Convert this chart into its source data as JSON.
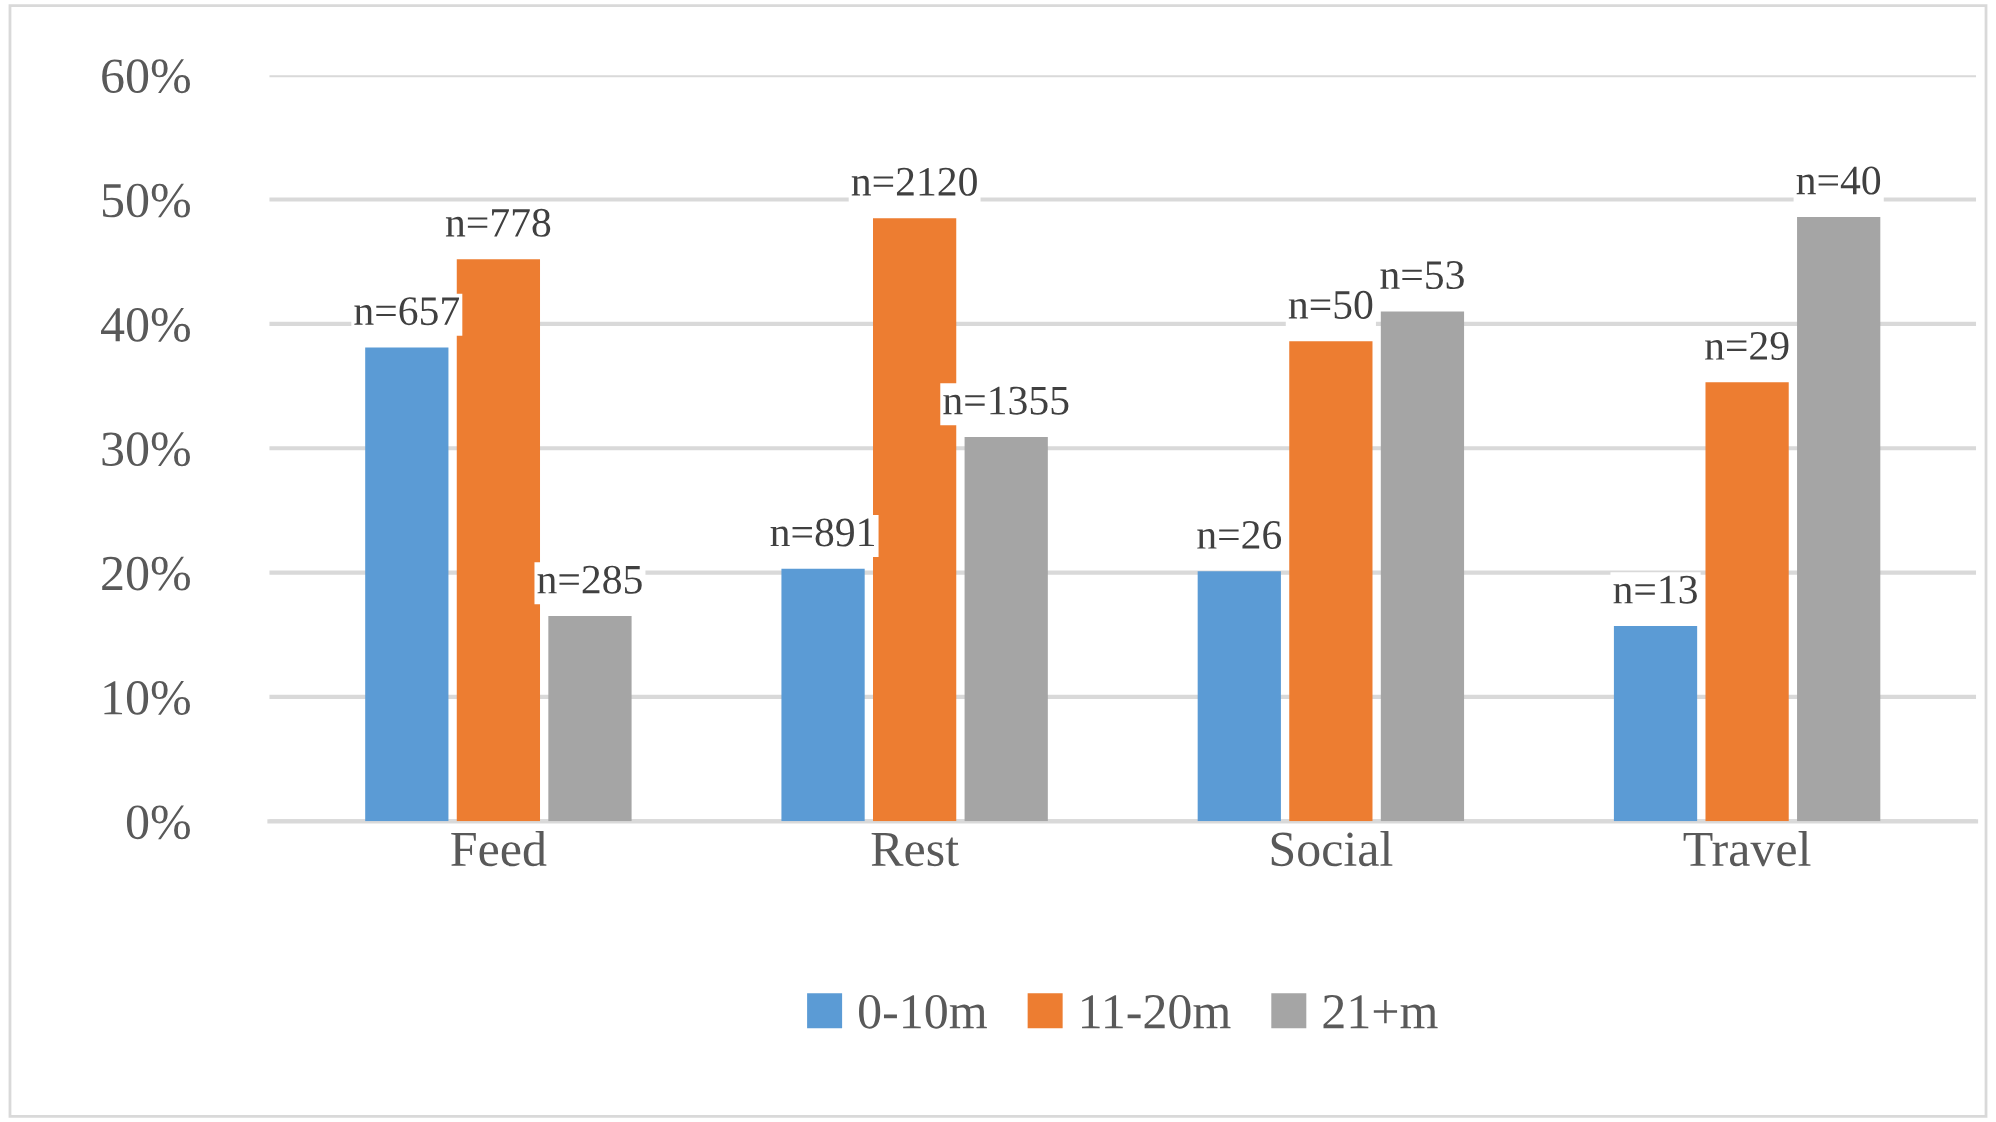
{
  "chart_data": {
    "type": "bar",
    "categories": [
      "Feed",
      "Rest",
      "Social",
      "Travel"
    ],
    "series": [
      {
        "name": "0-10m",
        "color": "#5b9bd5",
        "values": [
          38.1,
          20.3,
          20.1,
          15.7
        ]
      },
      {
        "name": "11-20m",
        "color": "#ed7d31",
        "values": [
          45.2,
          48.5,
          38.6,
          35.3
        ]
      },
      {
        "name": "21+m",
        "color": "#a5a5a5",
        "values": [
          16.5,
          30.9,
          41.0,
          48.6
        ]
      }
    ],
    "annotations": [
      "n=657",
      "n=778",
      "n=285",
      "n=891",
      "n=2120",
      "n=1355",
      "n=26",
      "n=50",
      "n=53",
      "n=13",
      "n=29",
      "n=40"
    ],
    "ylim": [
      0,
      60
    ],
    "yticks": [
      {
        "value": 0,
        "label": "0%"
      },
      {
        "value": 10,
        "label": "10%"
      },
      {
        "value": 20,
        "label": "20%"
      },
      {
        "value": 30,
        "label": "30%"
      },
      {
        "value": 40,
        "label": "40%"
      },
      {
        "value": 50,
        "label": "50%"
      },
      {
        "value": 60,
        "label": "60%"
      }
    ],
    "grid": "y",
    "legend": "bottom"
  }
}
